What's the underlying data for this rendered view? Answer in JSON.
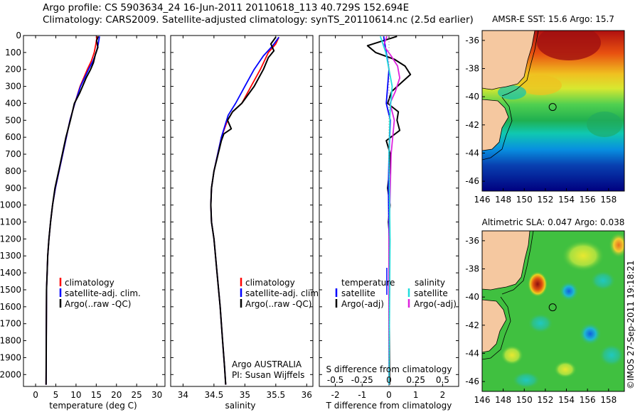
{
  "header": {
    "line1": "Argo profile: CS 5903634_24 16-Jun-2011 20110618_113 40.729S 152.694E",
    "line2": "Climatology: CARS2009. Satellite-adjusted climatology: synTS_20110614.nc (2.5d earlier)"
  },
  "colors": {
    "red": "#ff0000",
    "blue": "#0000ff",
    "black": "#000000",
    "magenta": "#dd22dd",
    "cyan": "#22dddd",
    "land": "#f5c8a0"
  },
  "chart_data": [
    {
      "type": "line",
      "name": "temperature-profile",
      "xlabel": "temperature (deg C)",
      "xticks": [
        "0",
        "5",
        "10",
        "15",
        "20",
        "25",
        "30"
      ],
      "xlim": [
        -3,
        32
      ],
      "ylim": [
        2070,
        0
      ],
      "yticks": [
        "0",
        "100",
        "200",
        "300",
        "400",
        "500",
        "600",
        "700",
        "800",
        "900",
        "1000",
        "1100",
        "1200",
        "1300",
        "1400",
        "1500",
        "1600",
        "1700",
        "1800",
        "1900",
        "2000"
      ],
      "legend": [
        "climatology",
        "satellite-adj. clim.",
        "Argo(..raw -QC)"
      ],
      "series": [
        {
          "name": "climatology",
          "color": "red",
          "x": [
            15.2,
            14.9,
            14.5,
            13.8,
            12.8,
            11.9,
            11.0,
            9.7,
            8.5,
            7.6,
            6.7,
            5.8,
            4.9,
            4.2,
            3.7,
            3.3,
            3.0,
            2.85,
            2.7,
            2.6
          ],
          "y": [
            5,
            50,
            100,
            150,
            200,
            250,
            300,
            400,
            500,
            600,
            700,
            800,
            900,
            1000,
            1100,
            1200,
            1300,
            1400,
            1500,
            2060
          ]
        },
        {
          "name": "satellite-adj",
          "color": "blue",
          "x": [
            15.8,
            15.5,
            15.0,
            14.2,
            13.1,
            12.1,
            11.1,
            9.7,
            8.5,
            7.6,
            6.7,
            5.8,
            4.9,
            4.2,
            3.7,
            3.3,
            3.0,
            2.85,
            2.7,
            2.6
          ],
          "y": [
            5,
            50,
            100,
            150,
            200,
            250,
            300,
            400,
            500,
            600,
            700,
            800,
            900,
            1000,
            1100,
            1200,
            1300,
            1400,
            1500,
            2060
          ]
        },
        {
          "name": "argo",
          "color": "black",
          "x": [
            15.5,
            15.1,
            15.4,
            14.8,
            14.3,
            13.6,
            12.5,
            11.8,
            10.9,
            9.6,
            8.6,
            7.5,
            6.6,
            5.7,
            4.8,
            4.2,
            3.7,
            3.3,
            3.0,
            2.85,
            2.7,
            2.6
          ],
          "y": [
            5,
            30,
            70,
            110,
            160,
            200,
            250,
            290,
            340,
            400,
            500,
            600,
            700,
            800,
            900,
            1000,
            1100,
            1200,
            1300,
            1400,
            1500,
            2060
          ]
        }
      ]
    },
    {
      "type": "line",
      "name": "salinity-profile",
      "xlabel": "salinity",
      "xticks": [
        "34",
        "34.5",
        "35",
        "35.5",
        "36"
      ],
      "xlim": [
        33.8,
        36.1
      ],
      "ylim": [
        2070,
        0
      ],
      "legend": [
        "climatology",
        "satellite-adj. clim.",
        "Argo(..raw -QC)"
      ],
      "annotation": [
        "Argo AUSTRALIA",
        "PI: Susan Wijffels"
      ],
      "series": [
        {
          "name": "climatology",
          "color": "red",
          "x": [
            35.55,
            35.5,
            35.38,
            35.25,
            35.1,
            34.95,
            34.8,
            34.72,
            34.62,
            34.5,
            34.46,
            34.45,
            34.46,
            34.5,
            34.55,
            34.6,
            34.64,
            34.67,
            34.69
          ],
          "y": [
            10,
            50,
            100,
            200,
            300,
            400,
            450,
            500,
            600,
            800,
            900,
            1000,
            1100,
            1200,
            1400,
            1600,
            1800,
            1950,
            2060
          ]
        },
        {
          "name": "satellite-adj",
          "color": "blue",
          "x": [
            35.55,
            35.45,
            35.3,
            35.15,
            35.0,
            34.85,
            34.73,
            34.62,
            34.5,
            34.46,
            34.45,
            34.46,
            34.5,
            34.55,
            34.6,
            34.64,
            34.67,
            34.69
          ],
          "y": [
            10,
            60,
            120,
            200,
            300,
            400,
            470,
            600,
            800,
            900,
            1000,
            1100,
            1200,
            1400,
            1600,
            1800,
            1950,
            2060
          ]
        },
        {
          "name": "argo",
          "color": "black",
          "x": [
            35.5,
            35.42,
            35.47,
            35.38,
            35.3,
            35.15,
            34.95,
            34.8,
            34.72,
            34.78,
            34.66,
            34.62,
            34.5,
            34.46,
            34.45,
            34.46,
            34.5,
            34.55,
            34.6,
            34.64,
            34.67,
            34.69
          ],
          "y": [
            10,
            50,
            90,
            130,
            200,
            300,
            400,
            450,
            500,
            550,
            580,
            620,
            800,
            900,
            1000,
            1100,
            1200,
            1400,
            1600,
            1800,
            1950,
            2060
          ]
        }
      ]
    },
    {
      "type": "line",
      "name": "difference-profile",
      "xlabel": "T difference from climatology",
      "top_label": "S difference from climatology",
      "xticks": [
        "-2",
        "-1",
        "0",
        "1",
        "2"
      ],
      "xlim": [
        -2.6,
        2.6
      ],
      "sticks": [
        "-0.5",
        "-0.25",
        "0",
        "0.25",
        "0.5"
      ],
      "legend": {
        "temp_header": "temperature",
        "sal_header": "salinity",
        "satellite": "satellite",
        "argo": "Argo(-adj)"
      },
      "series": [
        {
          "name": "T argo-clim",
          "color": "black",
          "x": [
            0.3,
            -0.8,
            -0.5,
            0.2,
            0.6,
            0.8,
            0.45,
            0.1,
            -0.05,
            0.35,
            0.3,
            0.4,
            -0.1,
            0.05,
            0.02,
            -0.05,
            0.04,
            -0.02,
            0.03,
            0.02,
            0.01,
            0.02
          ],
          "y": [
            5,
            60,
            100,
            140,
            180,
            230,
            280,
            330,
            400,
            450,
            500,
            560,
            620,
            700,
            800,
            900,
            1000,
            1100,
            1200,
            1400,
            1600,
            2060
          ]
        },
        {
          "name": "T argo-sat",
          "color": "blue",
          "x": [
            -0.2,
            -0.1,
            0.0,
            -0.05,
            -0.1,
            0.05,
            0.0,
            -0.02,
            0.0,
            0.0,
            0.0
          ],
          "y": [
            5,
            100,
            200,
            300,
            400,
            500,
            700,
            900,
            1200,
            1600,
            2060
          ]
        },
        {
          "name": "S argo-clim",
          "color": "magenta",
          "x": [
            -0.02,
            -0.05,
            0.02,
            0.08,
            0.1,
            0.06,
            0.01,
            0.05,
            0.02,
            0.0,
            0.0
          ],
          "y": [
            5,
            60,
            120,
            180,
            250,
            330,
            400,
            500,
            700,
            1200,
            2060
          ]
        },
        {
          "name": "S argo-sat",
          "color": "cyan",
          "x": [
            -0.08,
            -0.03,
            0.0,
            0.03,
            0.01,
            0.0,
            0.01,
            0.0
          ],
          "y": [
            5,
            100,
            200,
            300,
            450,
            700,
            1200,
            2060
          ]
        }
      ]
    },
    {
      "type": "heatmap",
      "name": "amsre-sst-map",
      "title": "AMSR-E SST: 15.6 Argo: 15.7",
      "xticks": [
        "146",
        "148",
        "150",
        "152",
        "154",
        "156",
        "158"
      ],
      "yticks": [
        "-36",
        "-38",
        "-40",
        "-42",
        "-44",
        "-46"
      ],
      "xlim": [
        146,
        159.5
      ],
      "ylim": [
        -46.7,
        -35.3
      ],
      "argo_position": {
        "lon": 152.694,
        "lat": -40.729
      }
    },
    {
      "type": "heatmap",
      "name": "altimetric-sla-map",
      "title": "Altimetric SLA: 0.047 Argo: 0.038",
      "xticks": [
        "146",
        "148",
        "150",
        "152",
        "154",
        "156",
        "158"
      ],
      "yticks": [
        "-36",
        "-38",
        "-40",
        "-42",
        "-44",
        "-46"
      ],
      "xlim": [
        146,
        159.5
      ],
      "ylim": [
        -46.7,
        -35.3
      ],
      "argo_position": {
        "lon": 152.694,
        "lat": -40.729
      }
    }
  ],
  "footer_stamp": "©IMOS 27-Sep-2011 19:18:21"
}
